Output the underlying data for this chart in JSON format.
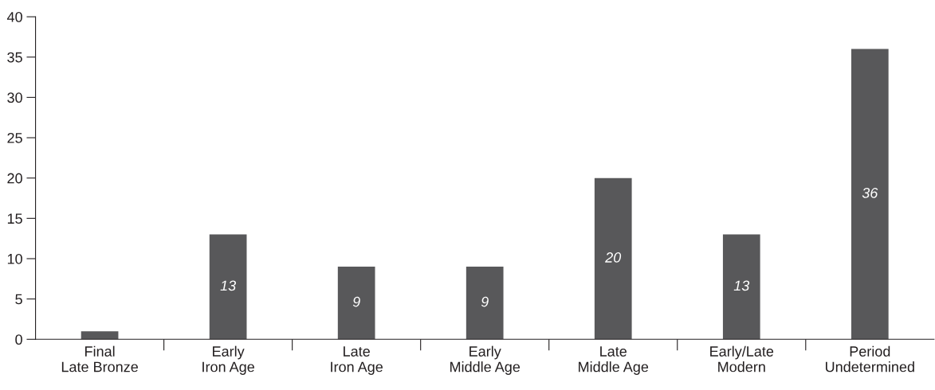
{
  "chart_data": {
    "type": "bar",
    "categories": [
      "Final\nLate Bronze",
      "Early\nIron Age",
      "Late\nIron Age",
      "Early\nMiddle Age",
      "Late\nMiddle Age",
      "Early/Late\nModern",
      "Period\nUndetermined"
    ],
    "values": [
      1,
      13,
      9,
      9,
      20,
      13,
      36
    ],
    "value_labels": [
      null,
      "13",
      "9",
      "9",
      "20",
      "13",
      "36"
    ],
    "color": "#58585a",
    "ylim": [
      0,
      40
    ],
    "yticks": [
      0,
      5,
      10,
      15,
      20,
      25,
      30,
      35,
      40
    ]
  }
}
